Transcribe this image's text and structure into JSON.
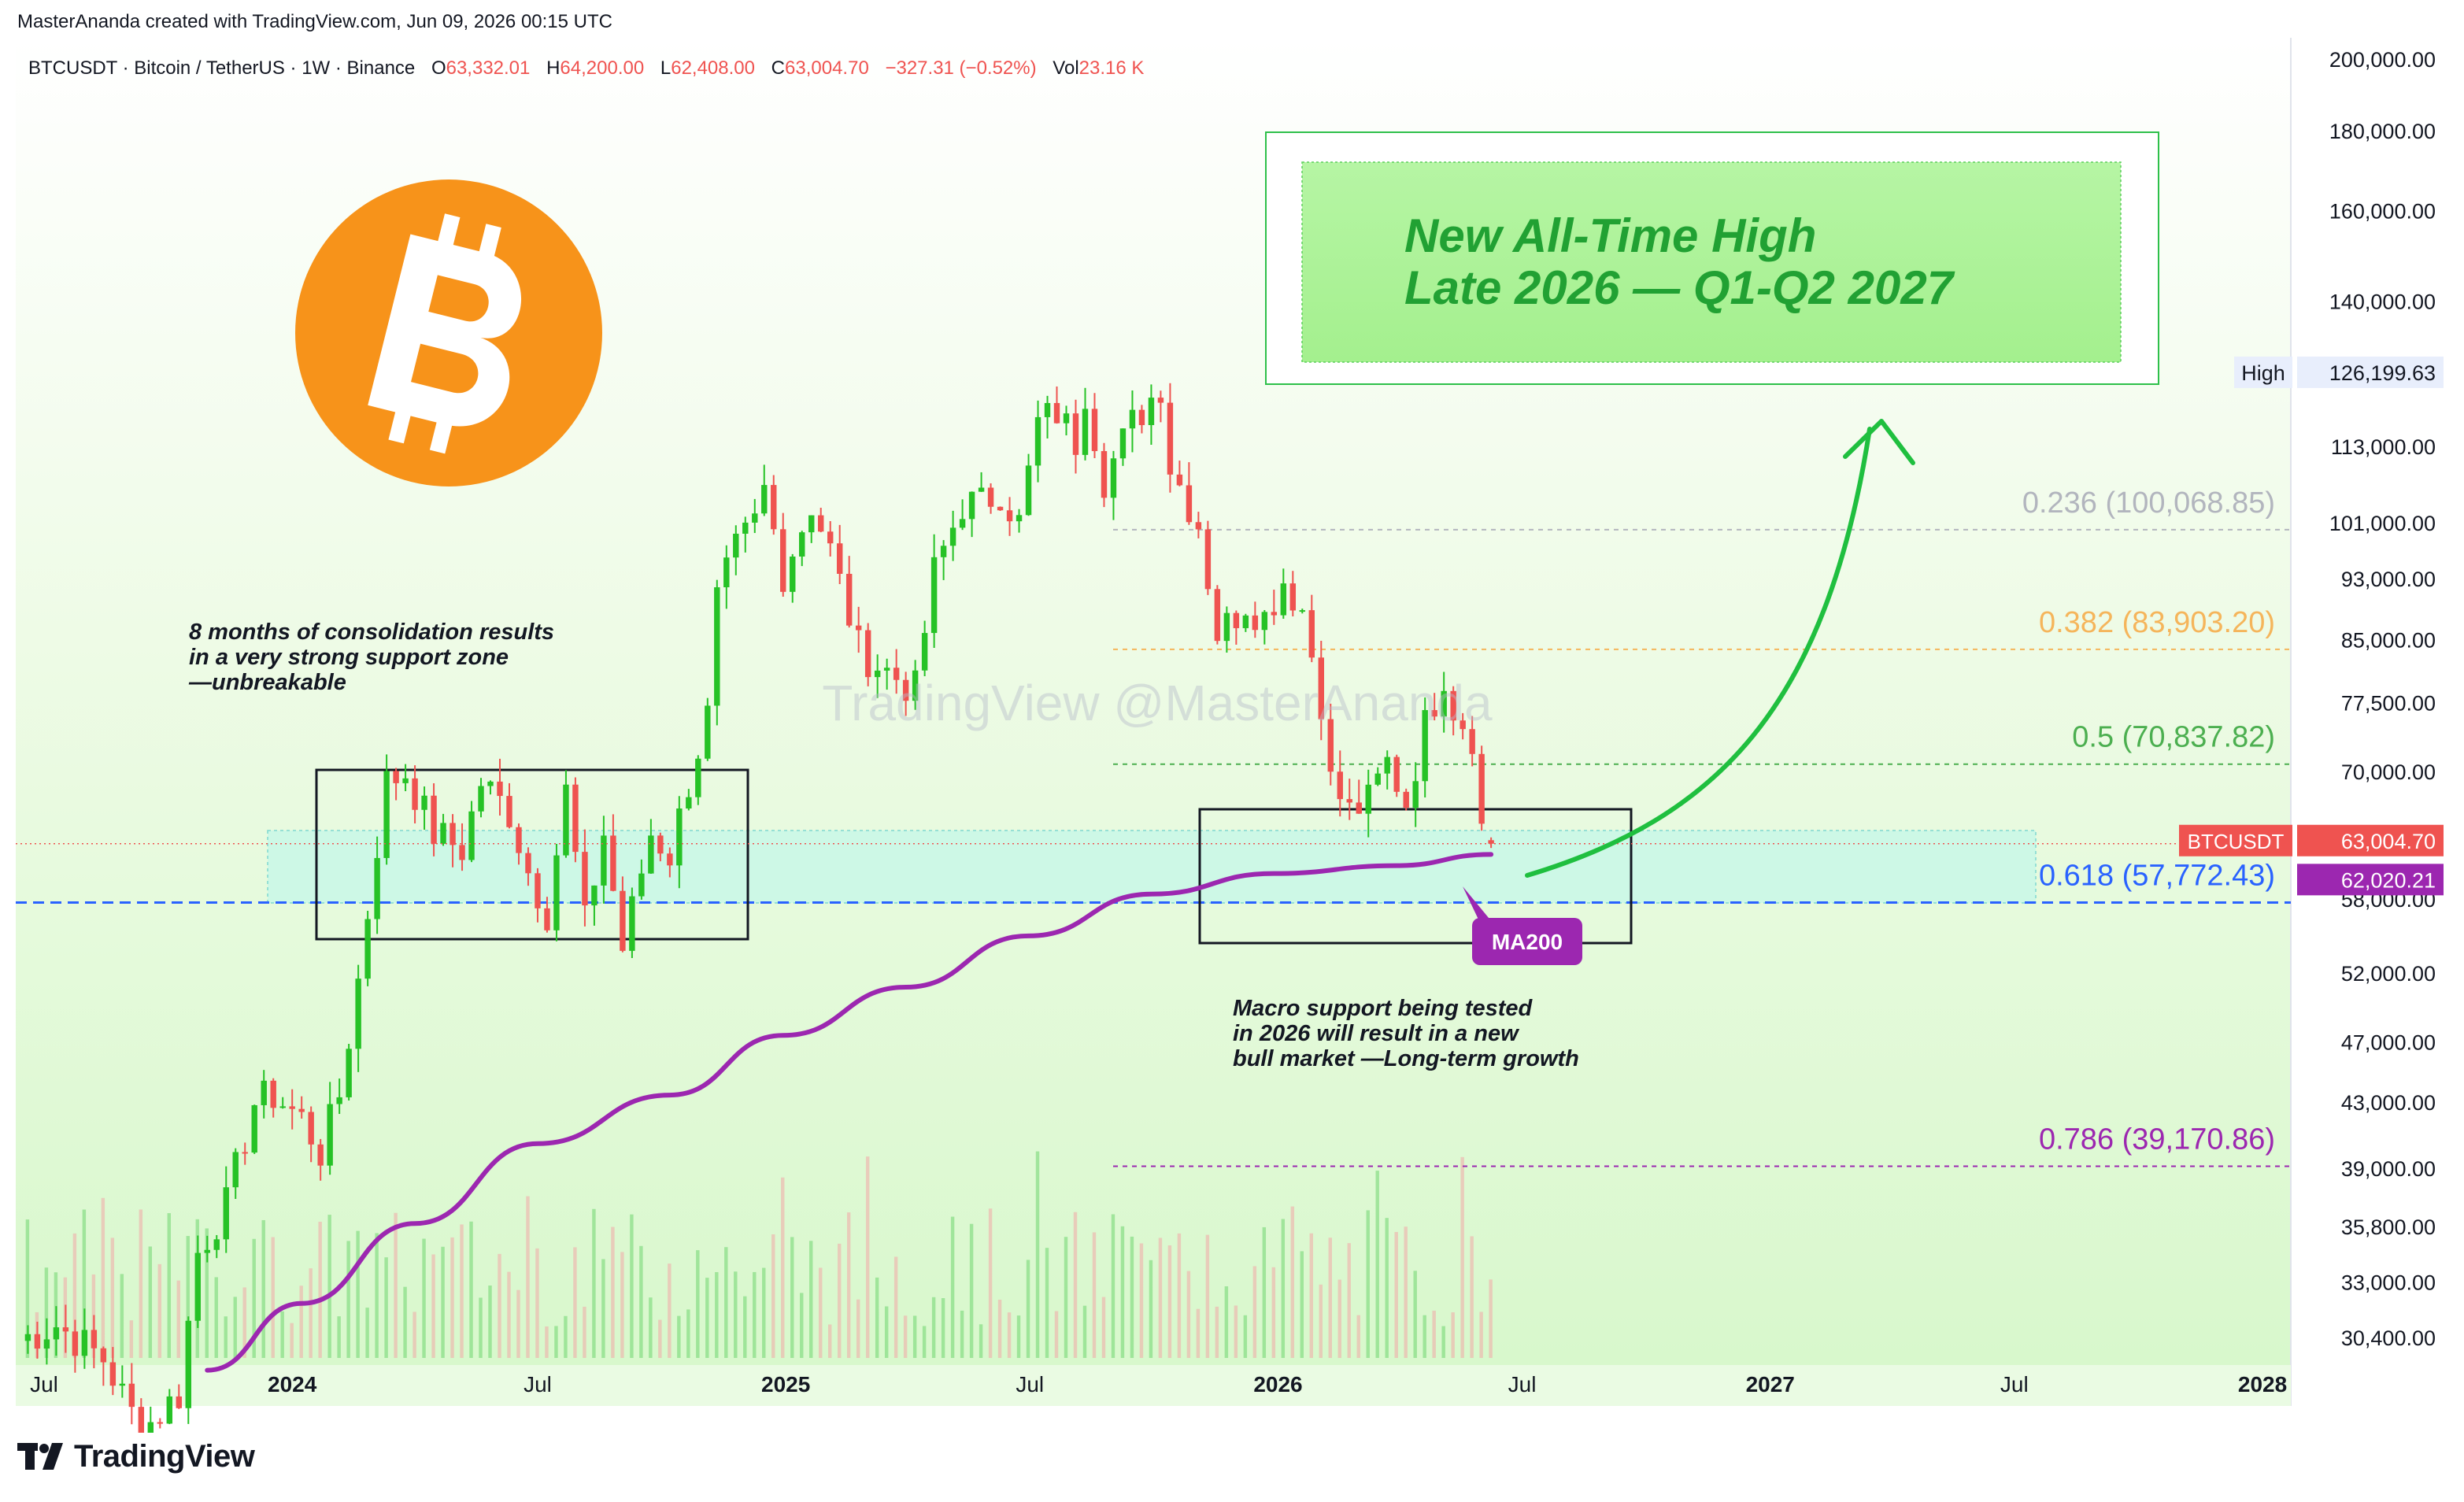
{
  "header": {
    "attribution": "MasterAnanda created with TradingView.com, Jun 09, 2026 00:15 UTC"
  },
  "symbol_bar": {
    "symbol": "BTCUSDT · Bitcoin / TetherUS · 1W · Binance",
    "o_label": "O",
    "o_value": "63,332.01",
    "h_label": "H",
    "h_value": "64,200.00",
    "l_label": "L",
    "l_value": "62,408.00",
    "c_label": "C",
    "c_value": "63,004.70",
    "change": "−327.31 (−0.52%)",
    "vol_label": "Vol",
    "vol_value": "23.16 K"
  },
  "brand": {
    "name": "TradingView"
  },
  "watermark": "TradingView @MasterAnanda",
  "colors": {
    "up": "#26c226",
    "down": "#ef5350",
    "ma": "#9c27b0",
    "bitcoin": "#f7931a",
    "arrow": "#1fbf3f",
    "support_zone": "#c8f7e8"
  },
  "chart_data": {
    "type": "candlestick",
    "symbol": "BTCUSDT",
    "timeframe": "1W",
    "y_scale": "log",
    "ylim": [
      29000,
      205000
    ],
    "xlim": [
      "2023-06-10",
      "2028-01-22"
    ],
    "y_ticks": [
      {
        "v": 200000,
        "label": "200,000.00"
      },
      {
        "v": 180000,
        "label": "180,000.00"
      },
      {
        "v": 160000,
        "label": "160,000.00"
      },
      {
        "v": 140000,
        "label": "140,000.00"
      },
      {
        "v": 113000,
        "label": "113,000.00"
      },
      {
        "v": 101000,
        "label": "101,000.00"
      },
      {
        "v": 93000,
        "label": "93,000.00"
      },
      {
        "v": 85000,
        "label": "85,000.00"
      },
      {
        "v": 77500,
        "label": "77,500.00"
      },
      {
        "v": 70000,
        "label": "70,000.00"
      },
      {
        "v": 64000,
        "label": "64,000.00"
      },
      {
        "v": 58000,
        "label": "58,000.00"
      },
      {
        "v": 52000,
        "label": "52,000.00"
      },
      {
        "v": 47000,
        "label": "47,000.00"
      },
      {
        "v": 43000,
        "label": "43,000.00"
      },
      {
        "v": 39000,
        "label": "39,000.00"
      },
      {
        "v": 35800,
        "label": "35,800.00"
      },
      {
        "v": 33000,
        "label": "33,000.00"
      },
      {
        "v": 30400,
        "label": "30,400.00"
      }
    ],
    "x_ticks": [
      {
        "date": "2023-07-01",
        "label": "Jul",
        "bold": false
      },
      {
        "date": "2024-01-01",
        "label": "2024",
        "bold": true
      },
      {
        "date": "2024-07-01",
        "label": "Jul",
        "bold": false
      },
      {
        "date": "2025-01-01",
        "label": "2025",
        "bold": true
      },
      {
        "date": "2025-07-01",
        "label": "Jul",
        "bold": false
      },
      {
        "date": "2026-01-01",
        "label": "2026",
        "bold": true
      },
      {
        "date": "2026-07-01",
        "label": "Jul",
        "bold": false
      },
      {
        "date": "2027-01-01",
        "label": "2027",
        "bold": true
      },
      {
        "date": "2027-07-01",
        "label": "Jul",
        "bold": false
      },
      {
        "date": "2028-01-01",
        "label": "2028",
        "bold": true
      }
    ],
    "price_path": [
      [
        "2023-06-12",
        30300
      ],
      [
        "2023-07-10",
        31000
      ],
      [
        "2023-08-14",
        29500
      ],
      [
        "2023-09-11",
        26500
      ],
      [
        "2023-10-09",
        28000
      ],
      [
        "2023-10-23",
        34500
      ],
      [
        "2023-11-13",
        37000
      ],
      [
        "2023-12-04",
        43000
      ],
      [
        "2023-12-18",
        43500
      ],
      [
        "2024-01-08",
        42000
      ],
      [
        "2024-01-22",
        40000
      ],
      [
        "2024-02-05",
        43500
      ],
      [
        "2024-02-19",
        51500
      ],
      [
        "2024-03-04",
        63000
      ],
      [
        "2024-03-11",
        69000
      ],
      [
        "2024-03-25",
        70000
      ],
      [
        "2024-04-15",
        64000
      ],
      [
        "2024-05-06",
        62500
      ],
      [
        "2024-05-20",
        69000
      ],
      [
        "2024-06-10",
        66000
      ],
      [
        "2024-06-24",
        60500
      ],
      [
        "2024-07-08",
        57000
      ],
      [
        "2024-07-22",
        68000
      ],
      [
        "2024-08-05",
        56000
      ],
      [
        "2024-08-19",
        64000
      ],
      [
        "2024-09-02",
        54000
      ],
      [
        "2024-09-23",
        64000
      ],
      [
        "2024-10-07",
        62000
      ],
      [
        "2024-10-21",
        69000
      ],
      [
        "2024-11-04",
        76000
      ],
      [
        "2024-11-11",
        90000
      ],
      [
        "2024-11-25",
        97000
      ],
      [
        "2024-12-09",
        101000
      ],
      [
        "2024-12-16",
        106000
      ],
      [
        "2024-12-30",
        94000
      ],
      [
        "2025-01-20",
        104000
      ],
      [
        "2025-02-03",
        97000
      ],
      [
        "2025-02-24",
        84000
      ],
      [
        "2025-03-10",
        82000
      ],
      [
        "2025-04-07",
        79000
      ],
      [
        "2025-04-21",
        94000
      ],
      [
        "2025-05-12",
        104000
      ],
      [
        "2025-05-26",
        104000
      ],
      [
        "2025-06-09",
        106000
      ],
      [
        "2025-06-23",
        101000
      ],
      [
        "2025-07-07",
        117000
      ],
      [
        "2025-07-21",
        119000
      ],
      [
        "2025-08-04",
        114000
      ],
      [
        "2025-08-11",
        123000
      ],
      [
        "2025-08-25",
        108000
      ],
      [
        "2025-09-15",
        117000
      ],
      [
        "2025-10-06",
        124000
      ],
      [
        "2025-10-13",
        110000
      ],
      [
        "2025-11-03",
        101000
      ],
      [
        "2025-11-17",
        86000
      ],
      [
        "2025-11-24",
        87000
      ],
      [
        "2025-12-08",
        90000
      ],
      [
        "2025-12-22",
        88000
      ],
      [
        "2026-01-05",
        93000
      ],
      [
        "2026-01-19",
        89000
      ],
      [
        "2026-02-02",
        78000
      ],
      [
        "2026-02-09",
        69000
      ],
      [
        "2026-02-23",
        66000
      ],
      [
        "2026-03-09",
        67000
      ],
      [
        "2026-03-23",
        71000
      ],
      [
        "2026-04-06",
        67000
      ],
      [
        "2026-04-20",
        75000
      ],
      [
        "2026-05-04",
        81000
      ],
      [
        "2026-05-11",
        77000
      ],
      [
        "2026-05-25",
        74000
      ],
      [
        "2026-06-01",
        64500
      ],
      [
        "2026-06-08",
        63004.7
      ]
    ],
    "last_candle": {
      "open": 63332.01,
      "high": 64200.0,
      "low": 62408.0,
      "close": 63004.7,
      "change": -327.31,
      "change_pct": -0.52,
      "volume": "23.16 K"
    },
    "ma200": {
      "name": "MA200",
      "current": 62020.21,
      "label": "62,020.21",
      "path": [
        [
          "2023-10-30",
          29000
        ],
        [
          "2024-01-08",
          32000
        ],
        [
          "2024-04-01",
          36000
        ],
        [
          "2024-07-01",
          40500
        ],
        [
          "2024-10-07",
          43500
        ],
        [
          "2024-12-30",
          47500
        ],
        [
          "2025-03-31",
          51000
        ],
        [
          "2025-06-30",
          55000
        ],
        [
          "2025-09-29",
          58500
        ],
        [
          "2025-12-29",
          60300
        ],
        [
          "2026-03-30",
          61000
        ],
        [
          "2026-06-08",
          62020.21
        ]
      ]
    },
    "fib_levels": [
      {
        "ratio": "0.236",
        "value": 100068.85,
        "label": "0.236 (100,068.85)",
        "color": "#b2b5be"
      },
      {
        "ratio": "0.382",
        "value": 83903.2,
        "label": "0.382 (83,903.20)",
        "color": "#f5b55b"
      },
      {
        "ratio": "0.5",
        "value": 70837.82,
        "label": "0.5 (70,837.82)",
        "color": "#4caf50"
      },
      {
        "ratio": "0.618",
        "value": 57772.43,
        "label": "0.618 (57,772.43)",
        "color": "#2962ff"
      },
      {
        "ratio": "0.786",
        "value": 39170.86,
        "label": "0.786 (39,170.86)",
        "color": "#9c27b0"
      }
    ],
    "price_labels": {
      "high": {
        "label": "High",
        "value": 126199.63,
        "text": "126,199.63"
      },
      "last": {
        "label": "BTCUSDT",
        "value": 63004.7,
        "text": "63,004.70"
      }
    },
    "annotations": {
      "target_line1": "New All-Time High",
      "target_line2": "Late 2026 — Q1-Q2 2027",
      "consolidation_line1": "8 months of consolidation results",
      "consolidation_line2": "in a very strong support zone",
      "consolidation_line3": "—unbreakable",
      "macro_line1": "Macro support being tested",
      "macro_line2": "in 2026 will result in a new",
      "macro_line3": "bull market —Long-term growth",
      "ma_label": "MA200"
    }
  }
}
